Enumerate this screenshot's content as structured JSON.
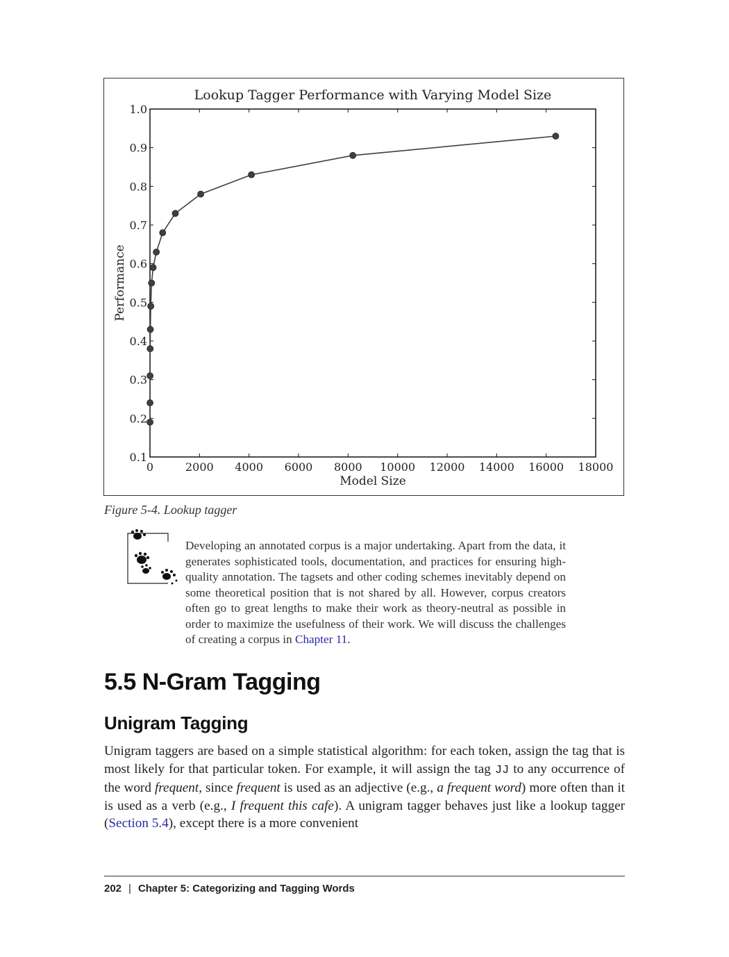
{
  "figure": {
    "caption": "Figure 5-4. Lookup tagger"
  },
  "chart_data": {
    "type": "line",
    "title": "Lookup Tagger Performance with Varying Model Size",
    "xlabel": "Model Size",
    "ylabel": "Performance",
    "xlim": [
      0,
      18000
    ],
    "ylim": [
      0.1,
      1.0
    ],
    "xticks": [
      "0",
      "2000",
      "4000",
      "6000",
      "8000",
      "10000",
      "12000",
      "14000",
      "16000",
      "18000"
    ],
    "yticks": [
      "0.1",
      "0.2",
      "0.3",
      "0.4",
      "0.5",
      "0.6",
      "0.7",
      "0.8",
      "0.9",
      "1.0"
    ],
    "grid": false,
    "series": [
      {
        "x": [
          1,
          2,
          4,
          8,
          16,
          32,
          64,
          128,
          256,
          512,
          1024,
          2048,
          4096,
          8192,
          16384
        ],
        "y": [
          0.19,
          0.24,
          0.31,
          0.38,
          0.43,
          0.49,
          0.55,
          0.59,
          0.63,
          0.68,
          0.73,
          0.78,
          0.83,
          0.88,
          0.93
        ],
        "color": "#404040"
      }
    ]
  },
  "note": {
    "text": "Developing an annotated corpus is a major undertaking. Apart from the data, it generates sophisticated tools, documentation, and practices for ensuring high-quality annotation. The tagsets and other coding schemes inevitably depend on some theoretical position that is not shared by all. However, corpus creators often go to great lengths to make their work as theory-neutral as possible in order to maximize the usefulness of their work. We will discuss the challenges of creating a corpus in ",
    "link": "Chapter 11",
    "end": "."
  },
  "section": {
    "heading": "5.5  N-Gram Tagging",
    "subheading": "Unigram Tagging",
    "p1": "Unigram taggers are based on a simple statistical algorithm: for each token, assign the tag that is most likely for that particular token. For example, it will assign the tag ",
    "code": "JJ",
    "p2": " to any occurrence of the word ",
    "em1": "frequent",
    "p3": ", since ",
    "em2": "frequent",
    "p4": " is used as an adjective (e.g., ",
    "em3": "a frequent word",
    "p5": ") more often than it is used as a verb (e.g., ",
    "em4": "I frequent this cafe",
    "p6": "). A unigram tagger behaves just like a lookup tagger (",
    "link": "Section 5.4",
    "p7": "), except there is a more convenient"
  },
  "footer": {
    "page": "202",
    "separator": "|",
    "chapter": "Chapter 5:  Categorizing and Tagging Words"
  }
}
